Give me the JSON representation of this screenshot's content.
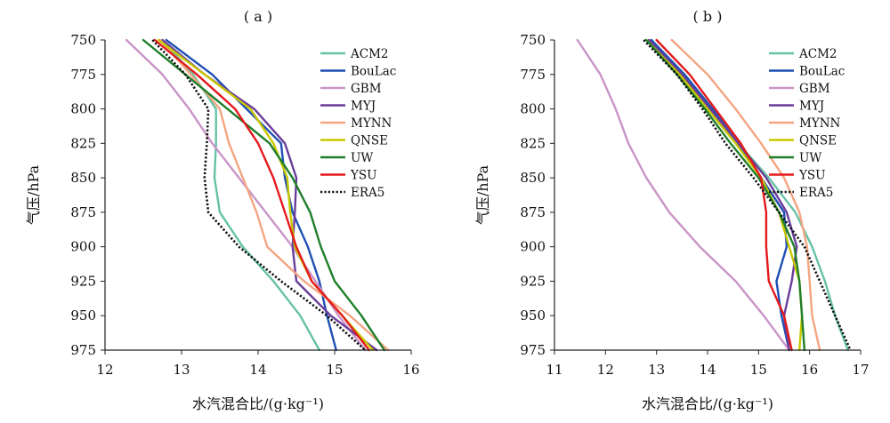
{
  "chart_data": [
    {
      "type": "line",
      "panel_label": "( a )",
      "xlabel": "水汽混合比/(g·kg⁻¹)",
      "ylabel": "气压/hPa",
      "xlim": [
        12,
        16
      ],
      "ylim": [
        750,
        975
      ],
      "y_inverted": true,
      "xticks": [
        "12",
        "13",
        "14",
        "15",
        "16"
      ],
      "yticks": [
        "750",
        "775",
        "800",
        "825",
        "850",
        "875",
        "900",
        "925",
        "950",
        "975"
      ],
      "legend_position": "top-right",
      "pressure": [
        750,
        775,
        800,
        825,
        850,
        875,
        900,
        925,
        950,
        975
      ],
      "series": [
        {
          "name": "ACM2",
          "color": "#66c2a5",
          "dash": "solid",
          "values": [
            12.75,
            13.15,
            13.45,
            13.45,
            13.43,
            13.5,
            13.8,
            14.2,
            14.55,
            14.8
          ]
        },
        {
          "name": "BouLac",
          "color": "#1f4fb4",
          "dash": "solid",
          "values": [
            12.8,
            13.4,
            13.85,
            14.3,
            14.35,
            14.45,
            14.65,
            14.8,
            14.9,
            15.02
          ]
        },
        {
          "name": "GBM",
          "color": "#c994c7",
          "dash": "solid",
          "values": [
            12.28,
            12.75,
            13.1,
            13.4,
            13.75,
            14.1,
            14.45,
            14.75,
            15.05,
            15.4
          ]
        },
        {
          "name": "MYJ",
          "color": "#6a3d9a",
          "dash": "solid",
          "values": [
            12.75,
            13.3,
            13.95,
            14.35,
            14.5,
            14.48,
            14.45,
            14.5,
            14.95,
            15.55
          ]
        },
        {
          "name": "MYNN",
          "color": "#f4a582",
          "dash": "solid",
          "values": [
            12.72,
            13.12,
            13.5,
            13.62,
            13.8,
            13.98,
            14.12,
            14.6,
            15.2,
            15.7
          ]
        },
        {
          "name": "QNSE",
          "color": "#c8c800",
          "dash": "solid",
          "values": [
            12.7,
            13.3,
            13.9,
            14.2,
            14.38,
            14.42,
            14.48,
            14.7,
            15.1,
            15.5
          ]
        },
        {
          "name": "UW",
          "color": "#1f7f2a",
          "dash": "solid",
          "values": [
            12.5,
            13.05,
            13.6,
            14.15,
            14.45,
            14.68,
            14.82,
            15.0,
            15.35,
            15.65
          ]
        },
        {
          "name": "YSU",
          "color": "#e31a1c",
          "dash": "solid",
          "values": [
            12.65,
            13.2,
            13.7,
            14.0,
            14.2,
            14.35,
            14.5,
            14.7,
            15.1,
            15.45
          ]
        },
        {
          "name": "ERA5",
          "color": "#111111",
          "dash": "dotted",
          "values": [
            12.62,
            13.05,
            13.35,
            13.33,
            13.3,
            13.35,
            13.75,
            14.3,
            14.9,
            15.4
          ]
        }
      ]
    },
    {
      "type": "line",
      "panel_label": "( b )",
      "xlabel": "水汽混合比/(g·kg⁻¹)",
      "ylabel": "气压/hPa",
      "xlim": [
        11,
        17
      ],
      "ylim": [
        750,
        975
      ],
      "y_inverted": true,
      "xticks": [
        "11",
        "12",
        "13",
        "14",
        "15",
        "16",
        "17"
      ],
      "yticks": [
        "750",
        "775",
        "800",
        "825",
        "850",
        "875",
        "900",
        "925",
        "950",
        "975"
      ],
      "legend_position": "top-right",
      "pressure": [
        750,
        775,
        800,
        825,
        850,
        875,
        900,
        925,
        950,
        975
      ],
      "series": [
        {
          "name": "ACM2",
          "color": "#66c2a5",
          "dash": "solid",
          "values": [
            12.9,
            13.5,
            14.05,
            14.6,
            15.2,
            15.72,
            16.05,
            16.3,
            16.5,
            16.75
          ]
        },
        {
          "name": "BouLac",
          "color": "#1f4fb4",
          "dash": "solid",
          "values": [
            12.9,
            13.55,
            14.1,
            14.6,
            15.05,
            15.5,
            15.55,
            15.35,
            15.45,
            15.6
          ]
        },
        {
          "name": "GBM",
          "color": "#c994c7",
          "dash": "solid",
          "values": [
            11.45,
            11.9,
            12.2,
            12.45,
            12.8,
            13.25,
            13.85,
            14.55,
            15.1,
            15.6
          ]
        },
        {
          "name": "MYJ",
          "color": "#6a3d9a",
          "dash": "solid",
          "values": [
            12.85,
            13.5,
            14.05,
            14.6,
            15.15,
            15.55,
            15.75,
            15.65,
            15.5,
            15.6
          ]
        },
        {
          "name": "MYNN",
          "color": "#f4a582",
          "dash": "solid",
          "values": [
            13.3,
            14.0,
            14.55,
            15.05,
            15.5,
            15.8,
            15.95,
            16.0,
            16.05,
            16.2
          ]
        },
        {
          "name": "QNSE",
          "color": "#c8c800",
          "dash": "solid",
          "values": [
            12.8,
            13.45,
            14.0,
            14.55,
            15.05,
            15.4,
            15.6,
            15.8,
            15.85,
            15.8
          ]
        },
        {
          "name": "UW",
          "color": "#1f7f2a",
          "dash": "solid",
          "values": [
            12.8,
            13.4,
            13.95,
            14.45,
            15.0,
            15.4,
            15.7,
            15.8,
            15.85,
            15.9
          ]
        },
        {
          "name": "YSU",
          "color": "#e31a1c",
          "dash": "solid",
          "values": [
            13.0,
            13.65,
            14.15,
            14.65,
            15.05,
            15.15,
            15.15,
            15.2,
            15.5,
            15.65
          ]
        },
        {
          "name": "ERA5",
          "color": "#111111",
          "dash": "dotted",
          "values": [
            12.75,
            13.4,
            13.9,
            14.35,
            14.9,
            15.4,
            15.9,
            16.2,
            16.5,
            16.8
          ]
        }
      ]
    }
  ]
}
